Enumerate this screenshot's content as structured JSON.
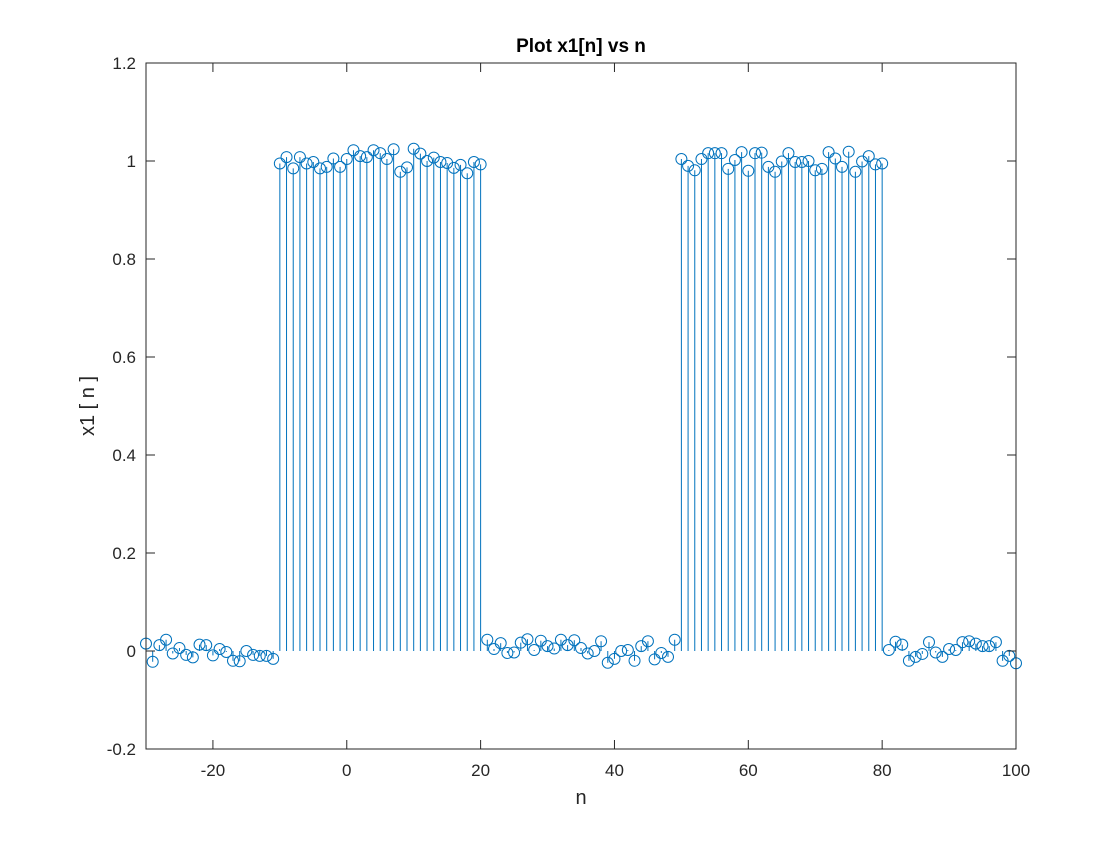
{
  "chart_data": {
    "type": "stem",
    "title": "Plot x1[n] vs n",
    "xlabel": "n",
    "ylabel": "x1 [ n ]",
    "xlim": [
      -30,
      100
    ],
    "ylim": [
      -0.2,
      1.2
    ],
    "xticks": [
      -20,
      0,
      20,
      40,
      60,
      80,
      100
    ],
    "xtick_labels": [
      "-20",
      "0",
      "20",
      "40",
      "60",
      "80",
      "100"
    ],
    "yticks": [
      -0.2,
      0,
      0.2,
      0.4,
      0.6,
      0.8,
      1,
      1.2
    ],
    "ytick_labels": [
      "-0.2",
      "0",
      "0.2",
      "0.4",
      "0.6",
      "0.8",
      "1",
      "1.2"
    ],
    "grid": false,
    "marker": "circle",
    "color": "#0072BD",
    "x": [
      -30,
      -29,
      -28,
      -27,
      -26,
      -25,
      -24,
      -23,
      -22,
      -21,
      -20,
      -19,
      -18,
      -17,
      -16,
      -15,
      -14,
      -13,
      -12,
      -11,
      -10,
      -9,
      -8,
      -7,
      -6,
      -5,
      -4,
      -3,
      -2,
      -1,
      0,
      1,
      2,
      3,
      4,
      5,
      6,
      7,
      8,
      9,
      10,
      11,
      12,
      13,
      14,
      15,
      16,
      17,
      18,
      19,
      20,
      21,
      22,
      23,
      24,
      25,
      26,
      27,
      28,
      29,
      30,
      31,
      32,
      33,
      34,
      35,
      36,
      37,
      38,
      39,
      40,
      41,
      42,
      43,
      44,
      45,
      46,
      47,
      48,
      49,
      50,
      51,
      52,
      53,
      54,
      55,
      56,
      57,
      58,
      59,
      60,
      61,
      62,
      63,
      64,
      65,
      66,
      67,
      68,
      69,
      70,
      71,
      72,
      73,
      74,
      75,
      76,
      77,
      78,
      79,
      80,
      81,
      82,
      83,
      84,
      85,
      86,
      87,
      88,
      89,
      90,
      91,
      92,
      93,
      94,
      95,
      96,
      97,
      98,
      99,
      100
    ],
    "y": [
      0.015,
      -0.022,
      0.012,
      0.023,
      -0.005,
      0.006,
      -0.008,
      -0.013,
      0.013,
      0.012,
      -0.009,
      0.004,
      -0.002,
      -0.02,
      -0.021,
      0.0,
      -0.008,
      -0.01,
      -0.01,
      -0.016,
      0.995,
      1.008,
      0.985,
      1.008,
      0.995,
      0.998,
      0.985,
      0.988,
      1.005,
      0.988,
      1.004,
      1.022,
      1.01,
      1.008,
      1.022,
      1.016,
      1.004,
      1.024,
      0.978,
      0.987,
      1.025,
      1.015,
      1.0,
      1.007,
      0.998,
      0.996,
      0.986,
      0.992,
      0.975,
      0.998,
      0.993,
      0.023,
      0.004,
      0.016,
      -0.004,
      -0.003,
      0.017,
      0.024,
      0.002,
      0.021,
      0.01,
      0.005,
      0.023,
      0.012,
      0.022,
      0.006,
      -0.005,
      0.0,
      0.02,
      -0.024,
      -0.016,
      0.0,
      0.002,
      -0.02,
      0.01,
      0.02,
      -0.017,
      -0.004,
      -0.012,
      0.023,
      1.004,
      0.99,
      0.981,
      1.004,
      1.016,
      1.016,
      1.016,
      0.984,
      1.002,
      1.018,
      0.98,
      1.016,
      1.017,
      0.988,
      0.978,
      0.999,
      1.016,
      0.998,
      0.998,
      1.0,
      0.981,
      0.984,
      1.018,
      1.005,
      0.988,
      1.019,
      0.978,
      0.999,
      1.01,
      0.993,
      0.995,
      0.002,
      0.019,
      0.013,
      -0.02,
      -0.012,
      -0.006,
      0.018,
      -0.003,
      -0.012,
      0.004,
      0.002,
      0.018,
      0.02,
      0.015,
      0.01,
      0.01,
      0.018,
      -0.02,
      -0.01,
      -0.025
    ]
  }
}
